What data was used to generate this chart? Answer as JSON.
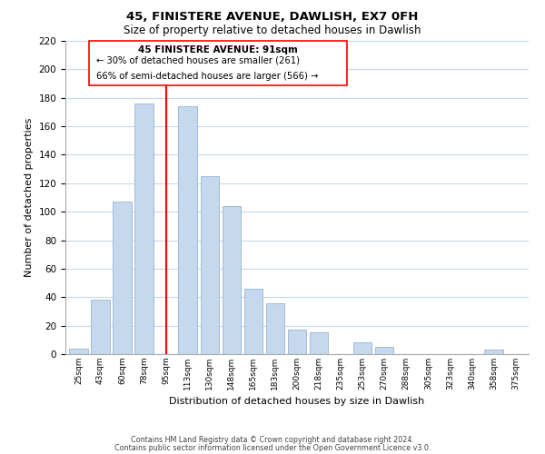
{
  "title": "45, FINISTERE AVENUE, DAWLISH, EX7 0FH",
  "subtitle": "Size of property relative to detached houses in Dawlish",
  "xlabel": "Distribution of detached houses by size in Dawlish",
  "ylabel": "Number of detached properties",
  "bar_color": "#c5d8ed",
  "bar_edge_color": "#a0bcd8",
  "categories": [
    "25sqm",
    "43sqm",
    "60sqm",
    "78sqm",
    "95sqm",
    "113sqm",
    "130sqm",
    "148sqm",
    "165sqm",
    "183sqm",
    "200sqm",
    "218sqm",
    "235sqm",
    "253sqm",
    "270sqm",
    "288sqm",
    "305sqm",
    "323sqm",
    "340sqm",
    "358sqm",
    "375sqm"
  ],
  "bar_heights": [
    4,
    38,
    107,
    176,
    0,
    174,
    125,
    104,
    46,
    36,
    17,
    15,
    0,
    8,
    5,
    0,
    0,
    0,
    0,
    3,
    0
  ],
  "ylim": [
    0,
    220
  ],
  "red_line_bin": 4,
  "annotation_title": "45 FINISTERE AVENUE: 91sqm",
  "annotation_line1": "← 30% of detached houses are smaller (261)",
  "annotation_line2": "66% of semi-detached houses are larger (566) →",
  "footer_line1": "Contains HM Land Registry data © Crown copyright and database right 2024.",
  "footer_line2": "Contains public sector information licensed under the Open Government Licence v3.0.",
  "background_color": "#ffffff",
  "grid_color": "#c8d8e8"
}
